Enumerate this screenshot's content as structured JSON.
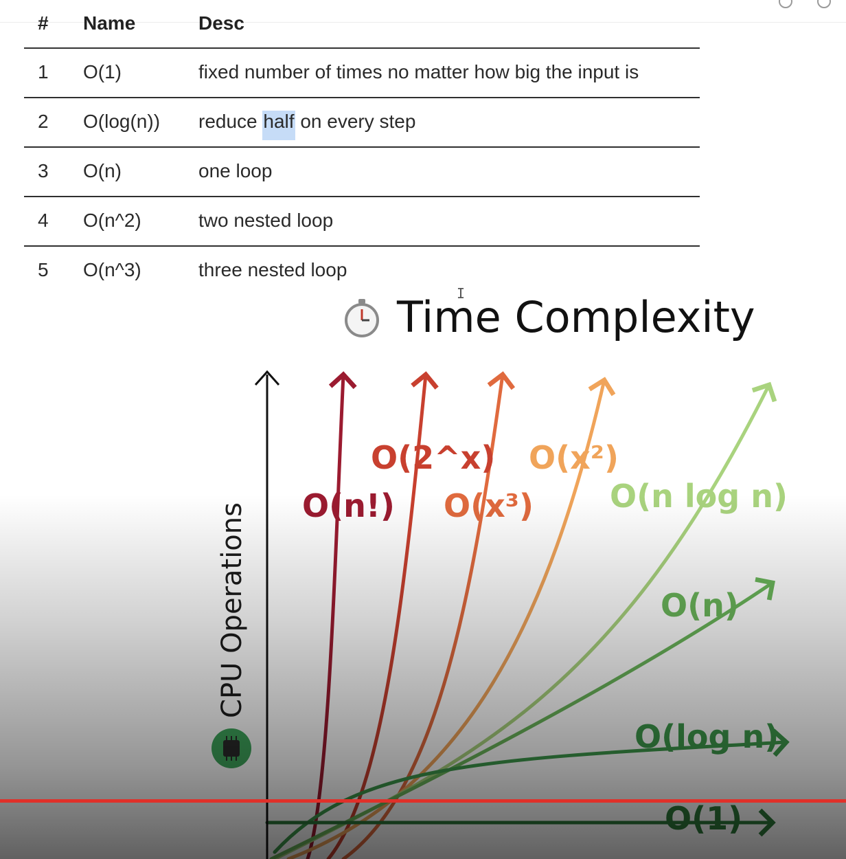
{
  "table": {
    "headers": [
      "#",
      "Name",
      "Desc"
    ],
    "rows": [
      {
        "num": "1",
        "name": "O(1)",
        "desc": "fixed number of times no matter how big the input is"
      },
      {
        "num": "2",
        "name": "O(log(n))",
        "desc_before": "reduce ",
        "desc_highlight": "half",
        "desc_after": " on every step"
      },
      {
        "num": "3",
        "name": "O(n)",
        "desc": "one loop"
      },
      {
        "num": "4",
        "name": "O(n^2)",
        "desc": "two nested loop"
      },
      {
        "num": "5",
        "name": "O(n^3)",
        "desc": "three nested loop"
      }
    ]
  },
  "cursor_glyph": "I",
  "icons": {
    "stopwatch": "stopwatch-icon",
    "chip": "cpu-chip-icon"
  },
  "chart_data": {
    "type": "line",
    "title": "Time Complexity",
    "ylabel": "CPU Operations",
    "xlabel": "",
    "series": [
      {
        "name": "O(n!)",
        "color": "#9b1b30"
      },
      {
        "name": "O(2^x)",
        "color": "#c8402f"
      },
      {
        "name": "O(x³)",
        "color": "#e06a3e"
      },
      {
        "name": "O(x²)",
        "color": "#f0a45a"
      },
      {
        "name": "O(n log n)",
        "color": "#a9d37e"
      },
      {
        "name": "O(n)",
        "color": "#6bb65b"
      },
      {
        "name": "O(log n)",
        "color": "#3e9a4c"
      },
      {
        "name": "O(1)",
        "color": "#2e7a3a"
      }
    ]
  },
  "colors": {
    "progress": "#e0302a",
    "axis": "#111111"
  }
}
